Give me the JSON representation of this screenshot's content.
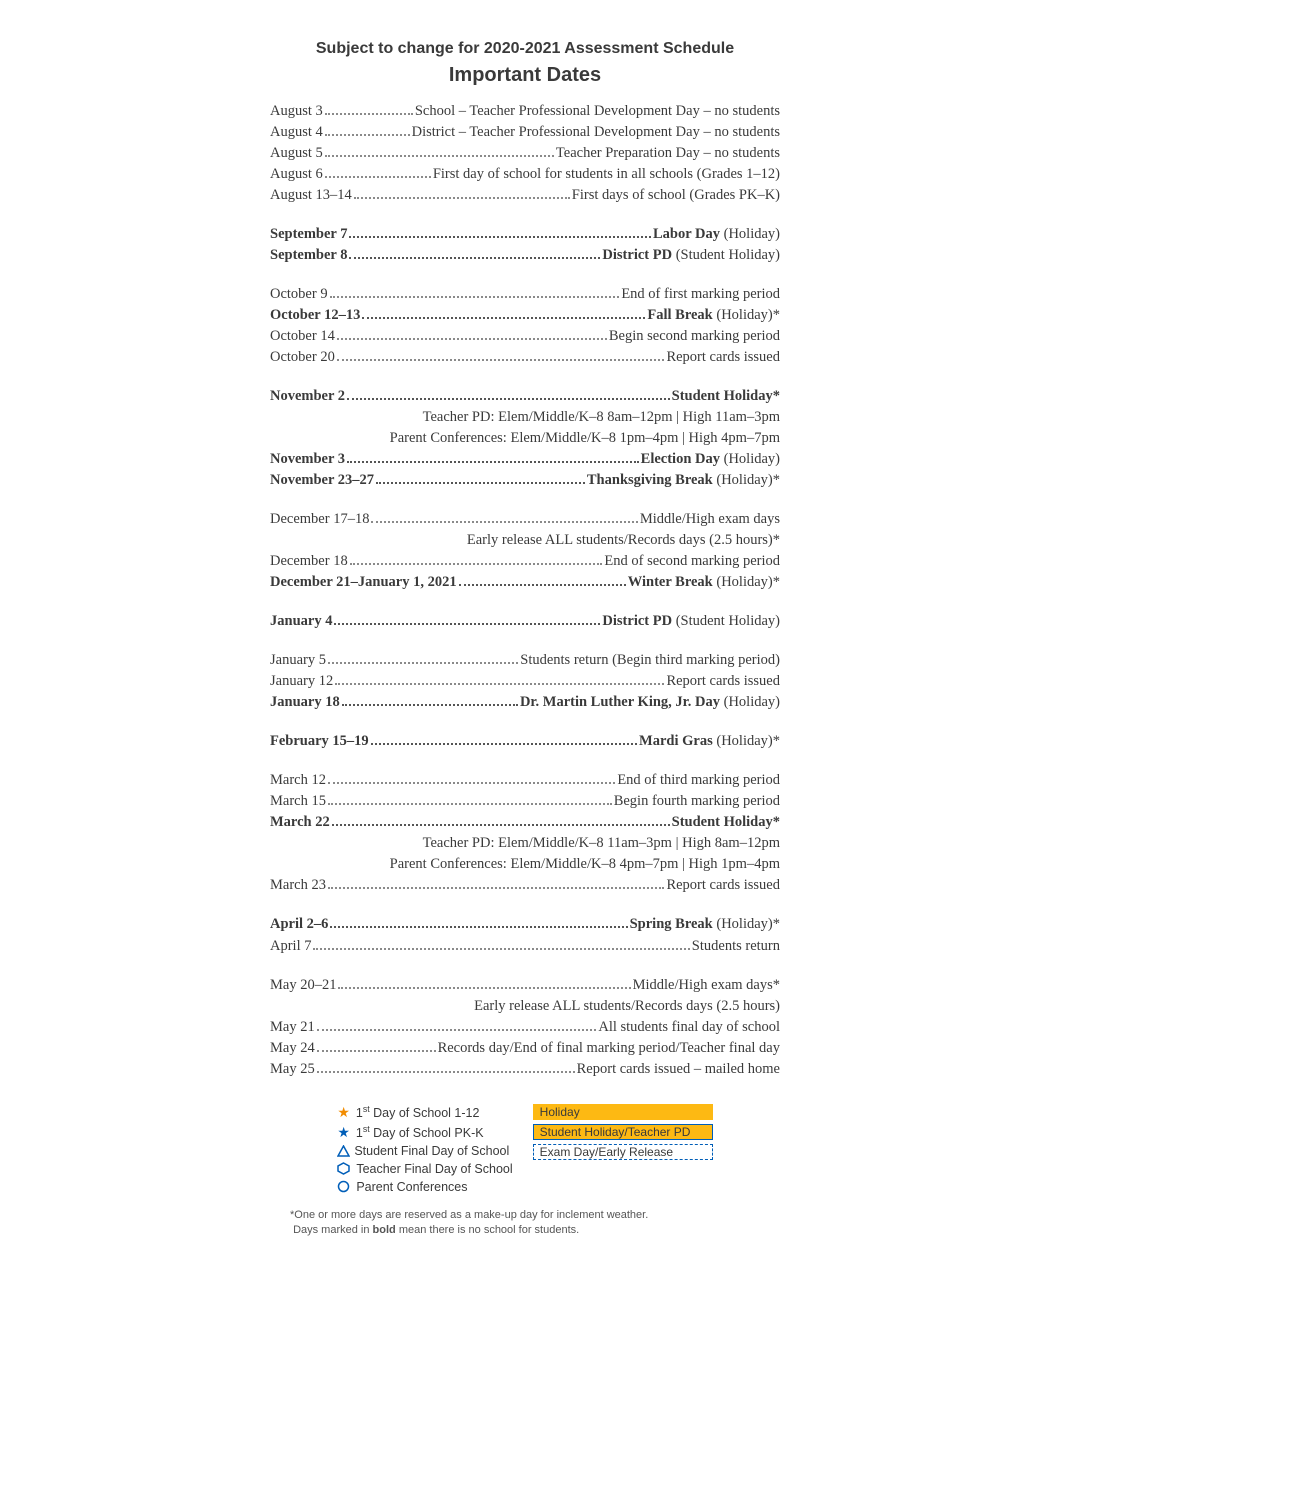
{
  "header": {
    "subtitle": "Subject to change for 2020-2021 Assessment Schedule",
    "title": "Important Dates"
  },
  "colors": {
    "text": "#3a3a3a",
    "dot": "#8a8a8a",
    "holiday_bg": "#fdb913",
    "blue": "#005eb8",
    "orange": "#f28c00"
  },
  "typography": {
    "body_font": "Georgia, serif",
    "heading_font": "Arial, sans-serif",
    "body_size_pt": 11,
    "heading_size_pt": 15
  },
  "groups": [
    {
      "rows": [
        {
          "date": "August 3",
          "desc": "School – Teacher Professional Development Day – no students",
          "bold": false
        },
        {
          "date": "August 4",
          "desc": "District – Teacher Professional Development Day – no students",
          "bold": false
        },
        {
          "date": "August 5",
          "desc": "Teacher Preparation Day – no students",
          "bold": false
        },
        {
          "date": "August 6",
          "desc": "First day of school for students in all schools (Grades 1–12)",
          "bold": false
        },
        {
          "date": "August 13–14",
          "desc": "First days of school (Grades PK–K)",
          "bold": false
        }
      ]
    },
    {
      "rows": [
        {
          "date": "September 7",
          "desc_bold": "Labor Day",
          "desc_tail": " (Holiday)",
          "bold": true
        },
        {
          "date": "September 8",
          "desc_bold": "District PD",
          "desc_tail": " (Student Holiday)",
          "bold": true
        }
      ]
    },
    {
      "rows": [
        {
          "date": "October 9",
          "desc": "End of first marking period",
          "bold": false
        },
        {
          "date": "October 12–13",
          "desc_bold": "Fall Break",
          "desc_tail": " (Holiday)*",
          "bold": true
        },
        {
          "date": "October 14",
          "desc": "Begin second marking period",
          "bold": false
        },
        {
          "date": "October 20",
          "desc": "Report cards issued",
          "bold": false
        }
      ]
    },
    {
      "rows": [
        {
          "date": "November 2",
          "desc_bold": "Student Holiday*",
          "desc_tail": "",
          "bold": true,
          "sublines": [
            "Teacher PD: Elem/Middle/K–8 8am–12pm | High 11am–3pm",
            "Parent Conferences: Elem/Middle/K–8 1pm–4pm | High 4pm–7pm"
          ]
        },
        {
          "date": "November 3",
          "desc_bold": "Election Day",
          "desc_tail": " (Holiday)",
          "bold": true
        },
        {
          "date": "November 23–27",
          "desc_bold": "Thanksgiving Break",
          "desc_tail": " (Holiday)*",
          "bold": true
        }
      ]
    },
    {
      "rows": [
        {
          "date": "December 17–18",
          "desc": "Middle/High exam days",
          "bold": false,
          "sublines": [
            "Early release ALL students/Records days (2.5 hours)*"
          ]
        },
        {
          "date": "December 18",
          "desc": "End of second marking period",
          "bold": false
        },
        {
          "date": "December 21–January 1, 2021",
          "desc_bold": "Winter Break",
          "desc_tail": " (Holiday)*",
          "bold": true
        }
      ]
    },
    {
      "rows": [
        {
          "date": "January 4",
          "desc_bold": "District PD",
          "desc_tail": " (Student Holiday)",
          "bold": true
        }
      ]
    },
    {
      "rows": [
        {
          "date": "January 5",
          "desc": "Students return (Begin third marking period)",
          "bold": false
        },
        {
          "date": "January 12",
          "desc": "Report cards issued",
          "bold": false
        },
        {
          "date": "January 18",
          "desc_bold": "Dr. Martin Luther King, Jr. Day",
          "desc_tail": " (Holiday)",
          "bold": true
        }
      ]
    },
    {
      "rows": [
        {
          "date": "February 15–19",
          "desc_bold": "Mardi Gras",
          "desc_tail": " (Holiday)*",
          "bold": true
        }
      ]
    },
    {
      "rows": [
        {
          "date": "March 12",
          "desc": "End of third marking period",
          "bold": false
        },
        {
          "date": "March 15",
          "desc": "Begin fourth marking period",
          "bold": false
        },
        {
          "date": "March 22",
          "desc_bold": "Student Holiday*",
          "desc_tail": "",
          "bold": true,
          "sublines": [
            "Teacher PD: Elem/Middle/K–8 11am–3pm | High 8am–12pm",
            "Parent Conferences: Elem/Middle/K–8 4pm–7pm | High 1pm–4pm"
          ]
        },
        {
          "date": "March 23",
          "desc": "Report cards issued",
          "bold": false
        }
      ]
    },
    {
      "rows": [
        {
          "date": "April 2–6",
          "desc_bold": "Spring Break",
          "desc_tail": " (Holiday)*",
          "bold": true
        },
        {
          "date": "April 7",
          "desc": "Students return",
          "bold": false
        }
      ]
    },
    {
      "rows": [
        {
          "date": "May 20–21",
          "desc": "Middle/High exam days*",
          "bold": false,
          "sublines": [
            "Early release ALL students/Records days (2.5 hours)"
          ]
        },
        {
          "date": "May 21",
          "desc": "All students final day of school",
          "bold": false
        },
        {
          "date": "May 24",
          "desc": "Records day/End of final marking period/Teacher final day",
          "bold": false
        },
        {
          "date": "May 25",
          "desc": "Report cards issued – mailed home",
          "bold": false
        }
      ]
    }
  ],
  "legend": {
    "left": [
      {
        "icon": "star-orange",
        "label_html": "1<sup>st</sup> Day of School 1-12"
      },
      {
        "icon": "star-blue",
        "label_html": "1<sup>st</sup> Day of School PK-K"
      },
      {
        "icon": "triangle",
        "label": "Student Final Day of School"
      },
      {
        "icon": "hexagon",
        "label": "Teacher Final Day of School"
      },
      {
        "icon": "circle",
        "label": "Parent Conferences"
      }
    ],
    "right": [
      {
        "swatch": "holiday",
        "label": "Holiday"
      },
      {
        "swatch": "student",
        "label": "Student Holiday/Teacher PD"
      },
      {
        "swatch": "exam",
        "label": "Exam Day/Early Release"
      }
    ]
  },
  "footnote": {
    "line1": "*One or more days are reserved as a make-up day for inclement weather.",
    "line2_pre": "Days marked in ",
    "line2_bold": "bold",
    "line2_post": " mean there is no school for students."
  }
}
